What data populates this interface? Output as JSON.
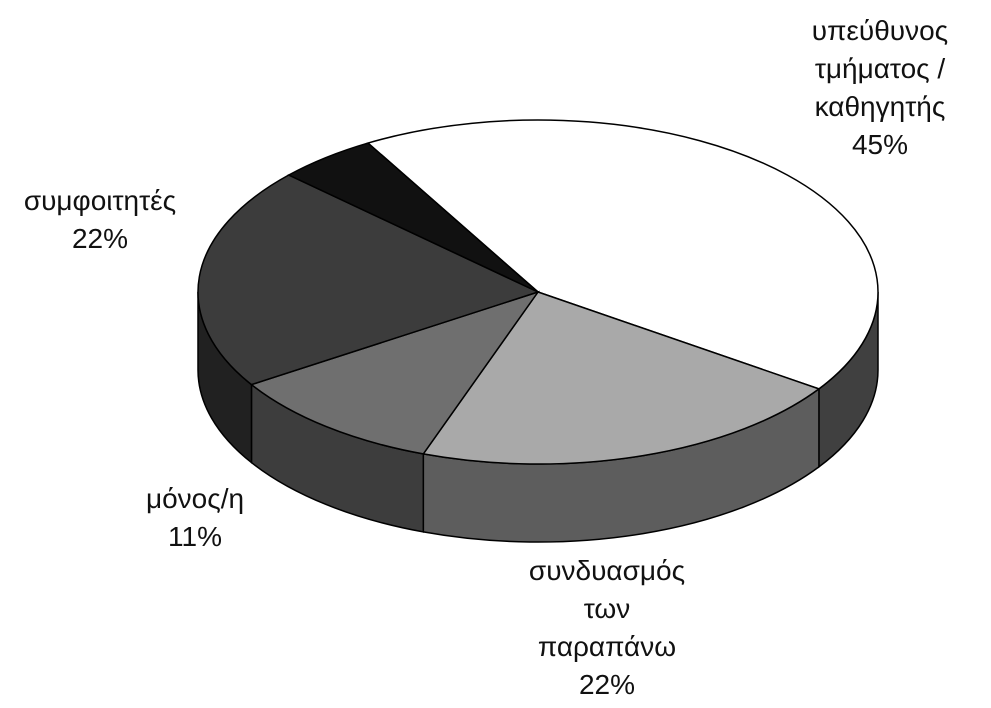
{
  "chart_data": {
    "type": "pie3d",
    "categories": [
      "υπεύθυνος τμήματος / καθηγητής",
      "συνδυασμός των παραπάνω",
      "μόνος/η",
      "συμφοιτητές",
      null
    ],
    "values": [
      45,
      22,
      11,
      22,
      5
    ],
    "value_labels": [
      "45%",
      "22%",
      "11%",
      "22%",
      null
    ],
    "colors": [
      "#ffffff",
      "#a9a9a9",
      "#6f6f6f",
      "#3c3c3c",
      "#111111"
    ]
  }
}
